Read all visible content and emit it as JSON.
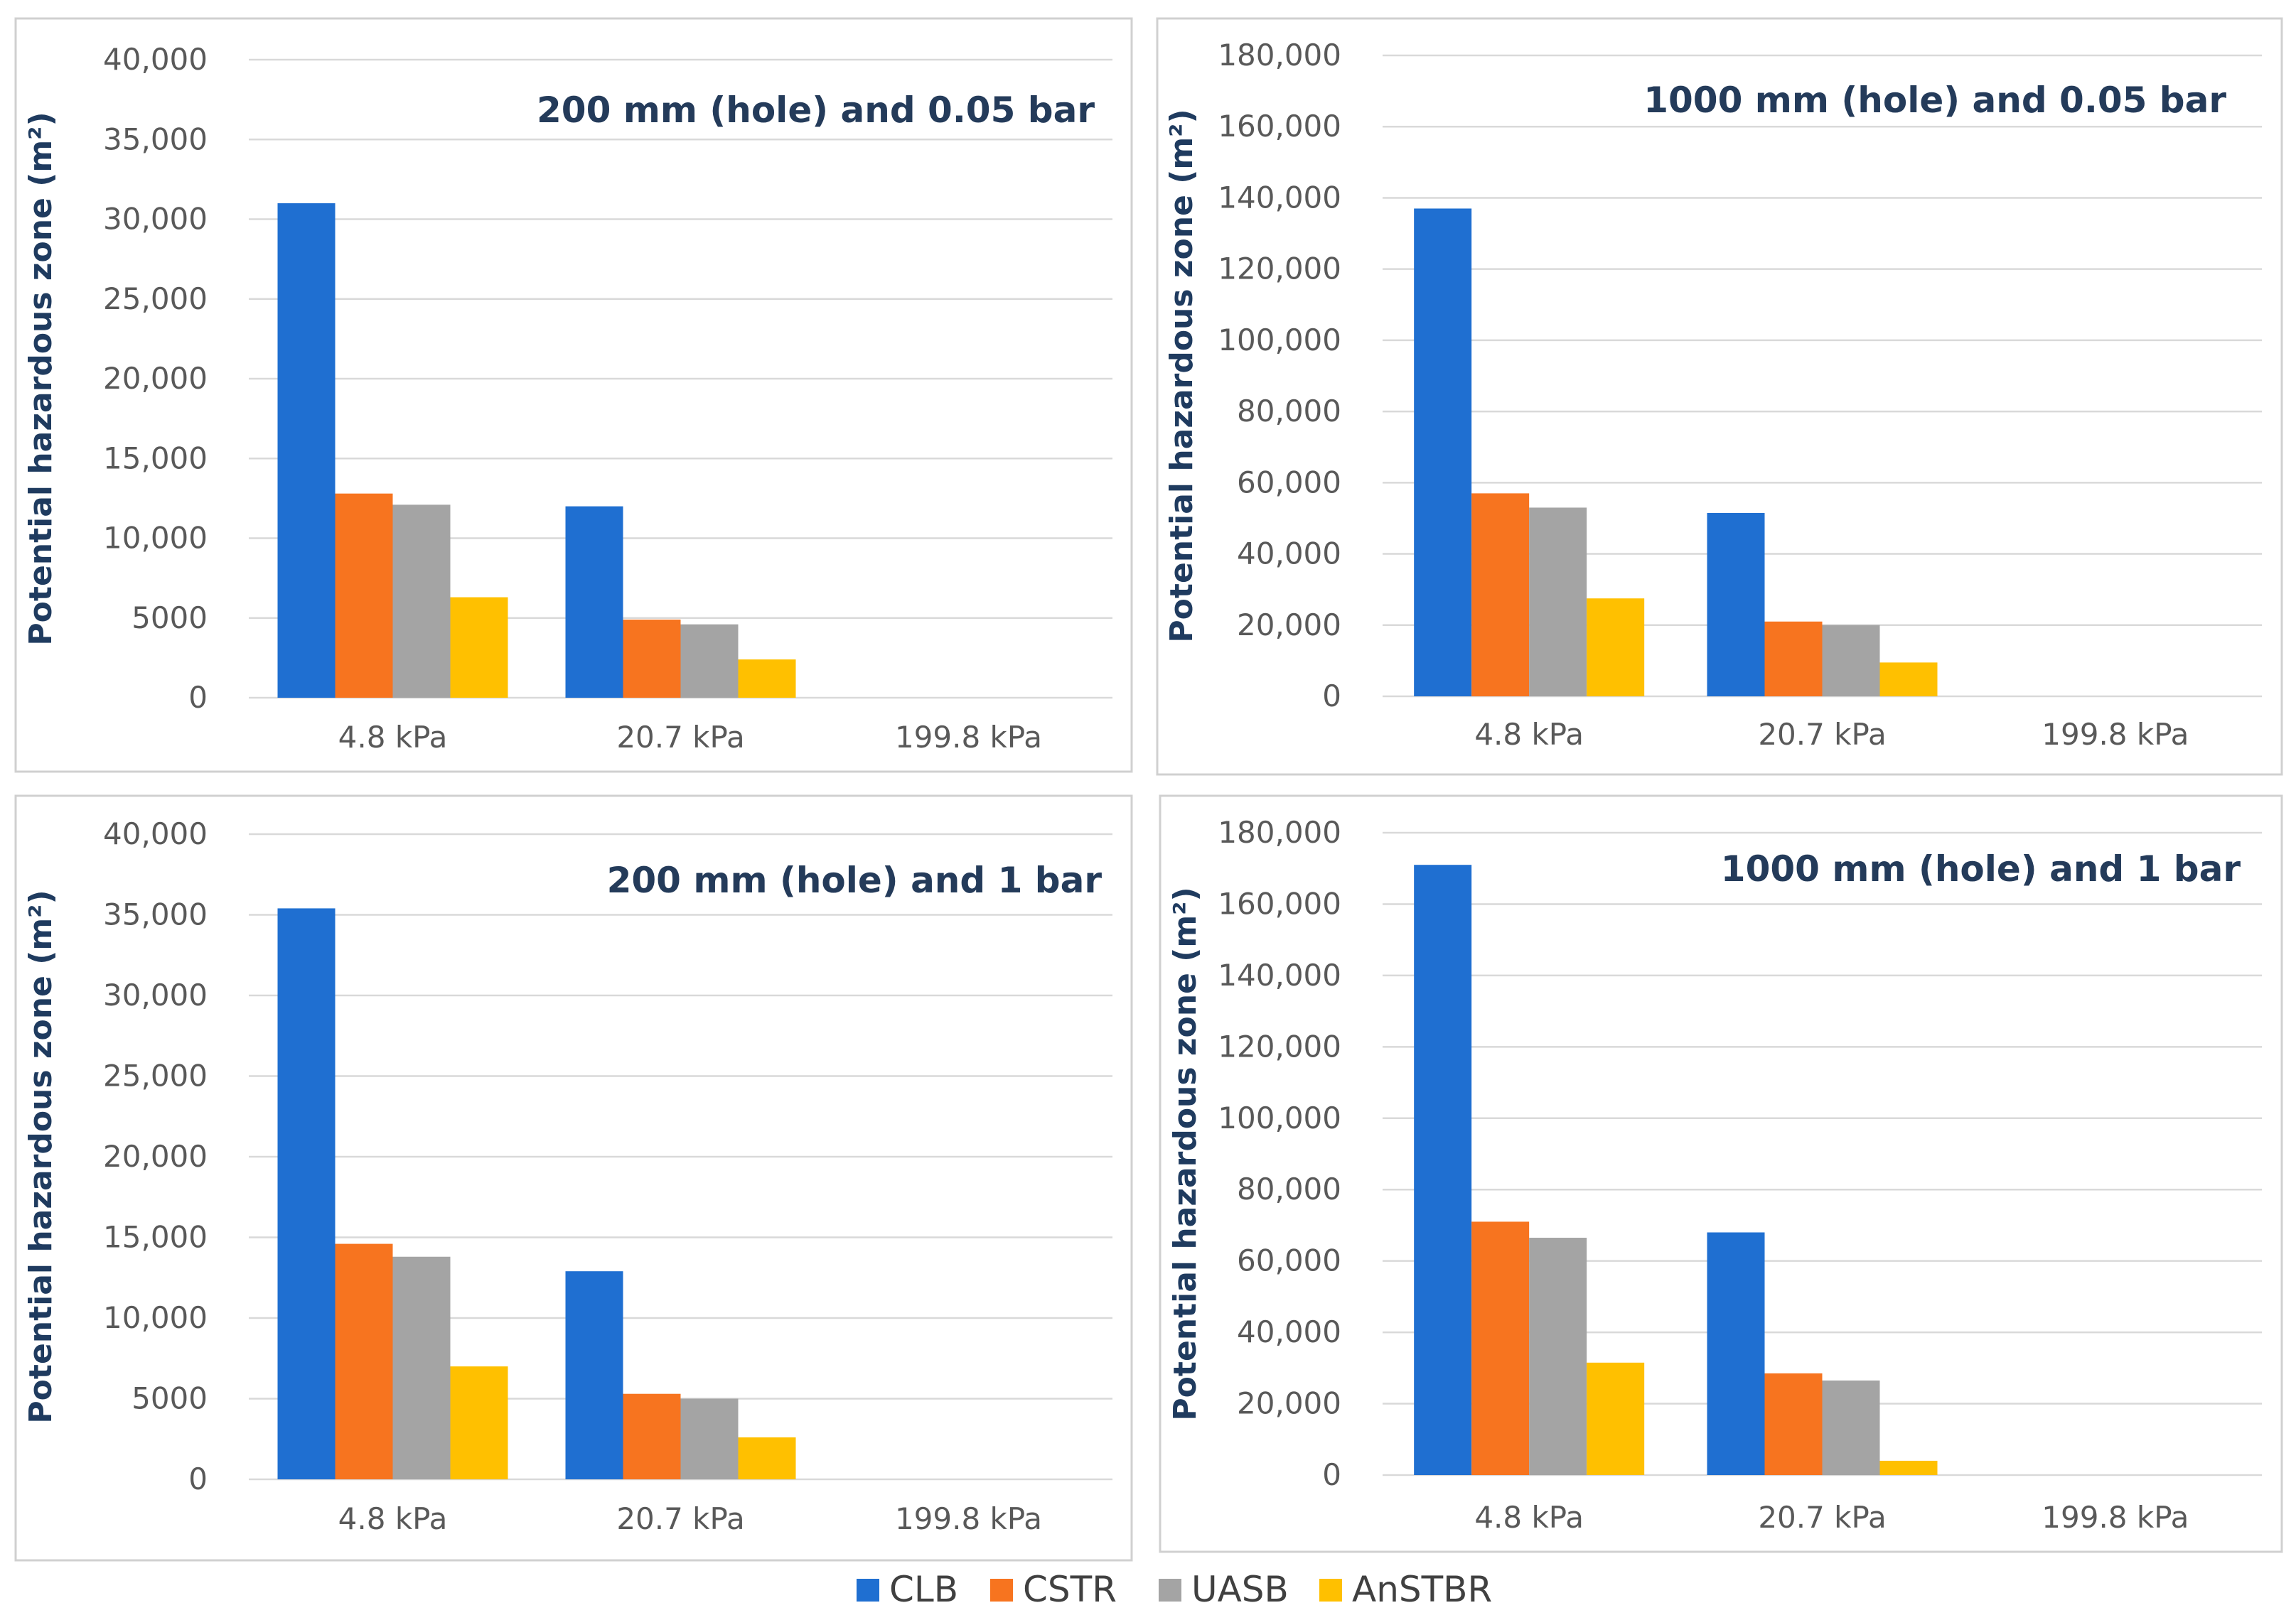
{
  "legend": [
    "CLB",
    "CSTR",
    "UASB",
    "AnSTBR"
  ],
  "colors": {
    "CLB": "#1f6fd1",
    "CSTR": "#f7741f",
    "UASB": "#a4a4a4",
    "AnSTBR": "#ffc000",
    "grid": "#d9d9d9",
    "panel_border": "#d0d0d0"
  },
  "chart_data": [
    {
      "type": "bar",
      "title": "200 mm (hole) and 0.05 bar",
      "ylabel": "Potential hazardous zone (m²)",
      "categories": [
        "4.8 kPa",
        "20.7 kPa",
        "199.8 kPa"
      ],
      "ylim": [
        0,
        40000
      ],
      "yticks": [
        "0",
        "5000",
        "10,000",
        "15,000",
        "20,000",
        "25,000",
        "30,000",
        "35,000",
        "40,000"
      ],
      "series": [
        {
          "name": "CLB",
          "values": [
            31000,
            12000,
            0
          ]
        },
        {
          "name": "CSTR",
          "values": [
            12800,
            4900,
            0
          ]
        },
        {
          "name": "UASB",
          "values": [
            12100,
            4600,
            0
          ]
        },
        {
          "name": "AnSTBR",
          "values": [
            6300,
            2400,
            0
          ]
        }
      ]
    },
    {
      "type": "bar",
      "title": "1000 mm (hole) and 0.05 bar",
      "ylabel": "Potential hazardous zone (m²)",
      "categories": [
        "4.8 kPa",
        "20.7 kPa",
        "199.8 kPa"
      ],
      "ylim": [
        0,
        180000
      ],
      "yticks": [
        "0",
        "20,000",
        "40,000",
        "60,000",
        "80,000",
        "100,000",
        "120,000",
        "140,000",
        "160,000",
        "180,000"
      ],
      "series": [
        {
          "name": "CLB",
          "values": [
            137000,
            51500,
            0
          ]
        },
        {
          "name": "CSTR",
          "values": [
            57000,
            21000,
            0
          ]
        },
        {
          "name": "UASB",
          "values": [
            53000,
            20000,
            0
          ]
        },
        {
          "name": "AnSTBR",
          "values": [
            27500,
            9500,
            0
          ]
        }
      ]
    },
    {
      "type": "bar",
      "title": "200 mm (hole) and 1 bar",
      "ylabel": "Potential hazardous zone (m²)",
      "categories": [
        "4.8 kPa",
        "20.7 kPa",
        "199.8 kPa"
      ],
      "ylim": [
        0,
        40000
      ],
      "yticks": [
        "0",
        "5000",
        "10,000",
        "15,000",
        "20,000",
        "25,000",
        "30,000",
        "35,000",
        "40,000"
      ],
      "series": [
        {
          "name": "CLB",
          "values": [
            35400,
            12900,
            0
          ]
        },
        {
          "name": "CSTR",
          "values": [
            14600,
            5300,
            0
          ]
        },
        {
          "name": "UASB",
          "values": [
            13800,
            5000,
            0
          ]
        },
        {
          "name": "AnSTBR",
          "values": [
            7000,
            2600,
            0
          ]
        }
      ]
    },
    {
      "type": "bar",
      "title": "1000 mm (hole) and 1 bar",
      "ylabel": "Potential hazardous zone (m²)",
      "categories": [
        "4.8 kPa",
        "20.7 kPa",
        "199.8 kPa"
      ],
      "ylim": [
        0,
        180000
      ],
      "yticks": [
        "0",
        "20,000",
        "40,000",
        "60,000",
        "80,000",
        "100,000",
        "120,000",
        "140,000",
        "160,000",
        "180,000"
      ],
      "series": [
        {
          "name": "CLB",
          "values": [
            171000,
            68000,
            0
          ]
        },
        {
          "name": "CSTR",
          "values": [
            71000,
            28500,
            0
          ]
        },
        {
          "name": "UASB",
          "values": [
            66500,
            26500,
            0
          ]
        },
        {
          "name": "AnSTBR",
          "values": [
            31500,
            4000,
            0
          ]
        }
      ]
    }
  ]
}
